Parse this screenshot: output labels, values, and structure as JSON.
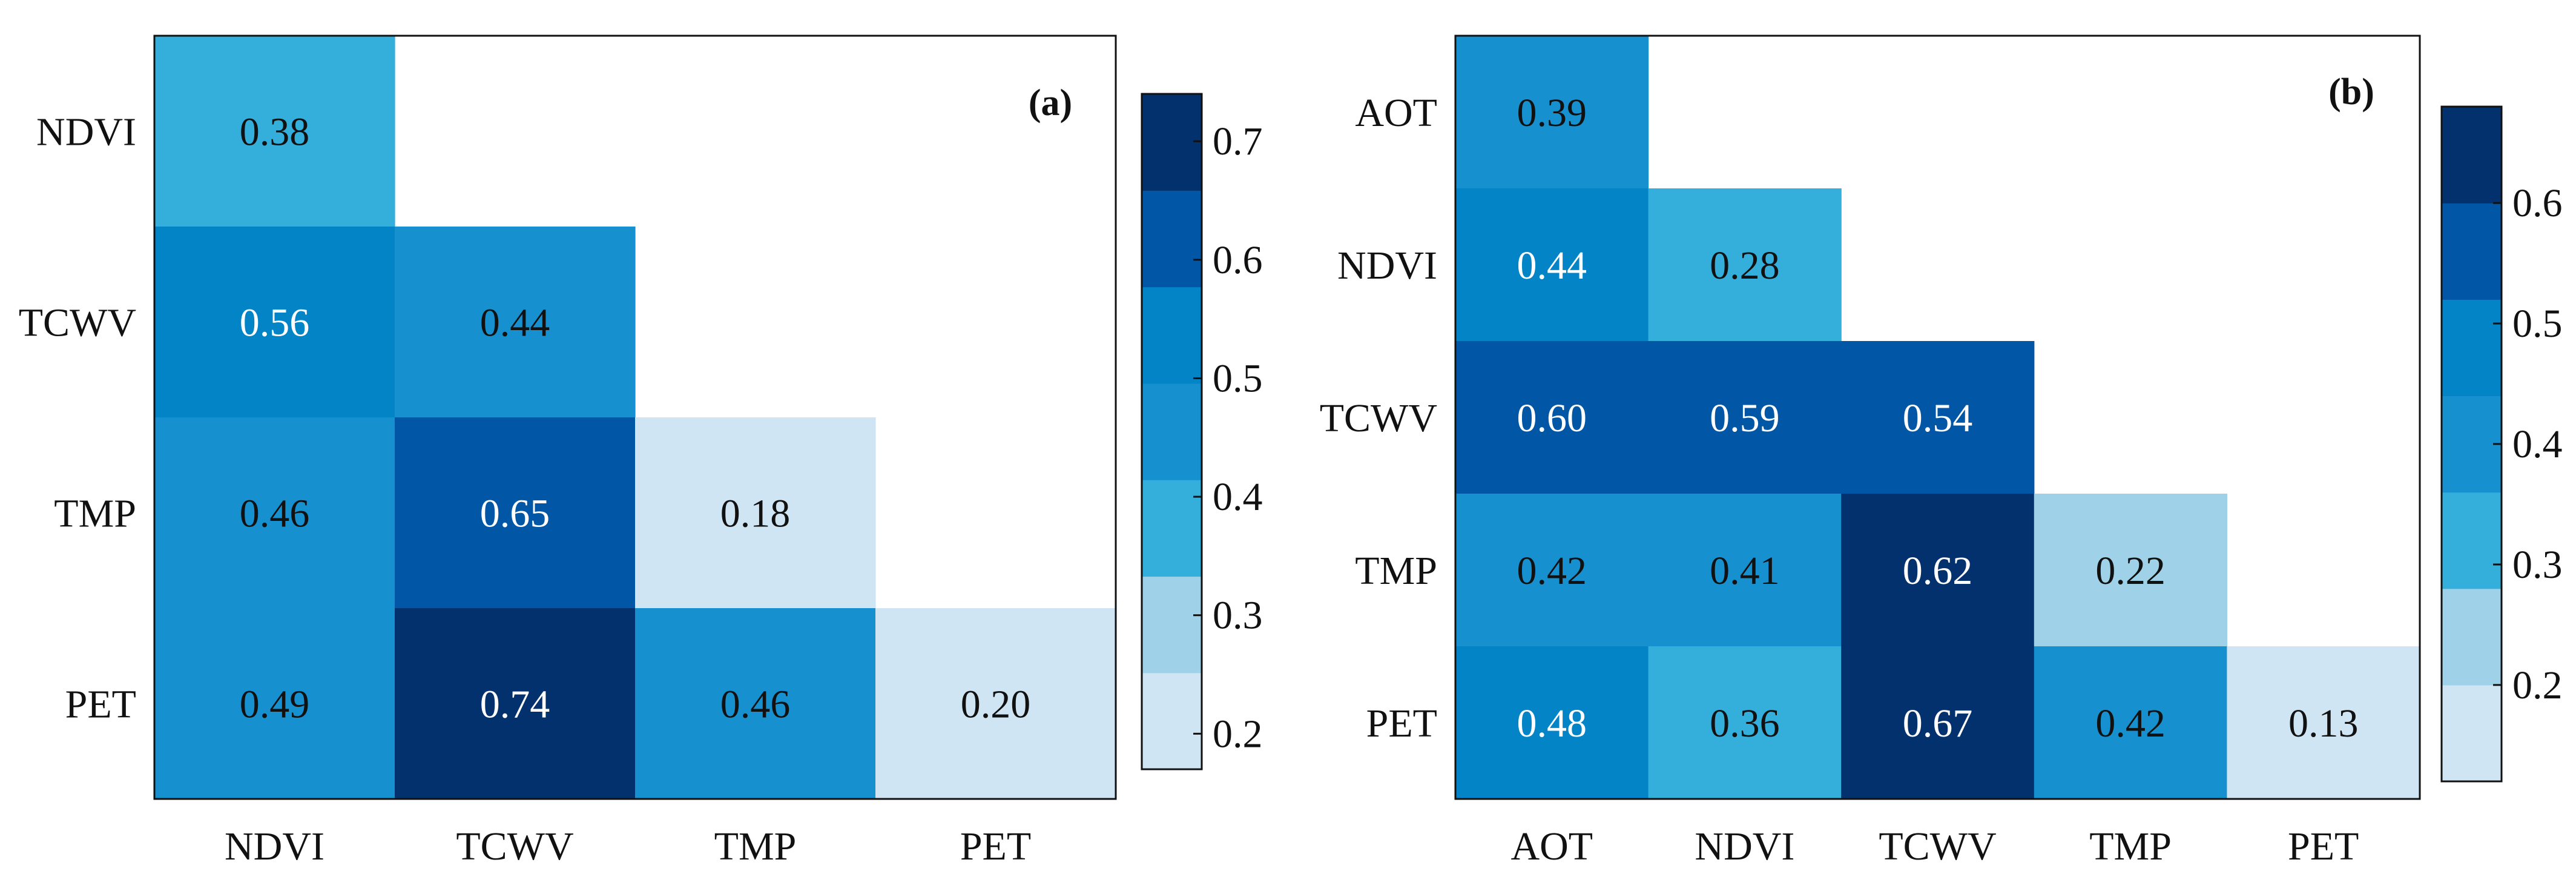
{
  "chart_data": [
    {
      "type": "heatmap",
      "panel_label": "(a)",
      "x_categories": [
        "NDVI",
        "TCWV",
        "TMP",
        "PET"
      ],
      "y_categories": [
        "NDVI",
        "TCWV",
        "TMP",
        "PET"
      ],
      "values": [
        [
          0.38,
          null,
          null,
          null
        ],
        [
          0.56,
          0.44,
          null,
          null
        ],
        [
          0.46,
          0.65,
          0.18,
          null
        ],
        [
          0.49,
          0.74,
          0.46,
          0.2
        ]
      ],
      "value_labels": [
        [
          "0.38",
          "",
          "",
          ""
        ],
        [
          "0.56",
          "0.44",
          "",
          ""
        ],
        [
          "0.46",
          "0.65",
          "0.18",
          ""
        ],
        [
          "0.49",
          "0.74",
          "0.46",
          "0.20"
        ]
      ],
      "colorbar": {
        "range": [
          0.17,
          0.74
        ],
        "ticks": [
          0.2,
          0.3,
          0.4,
          0.5,
          0.6,
          0.7
        ],
        "tick_labels": [
          "0.2",
          "0.3",
          "0.4",
          "0.5",
          "0.6",
          "0.7"
        ],
        "levels": 7
      }
    },
    {
      "type": "heatmap",
      "panel_label": "(b)",
      "x_categories": [
        "AOT",
        "NDVI",
        "TCWV",
        "TMP",
        "PET"
      ],
      "y_categories": [
        "AOT",
        "NDVI",
        "TCWV",
        "TMP",
        "PET"
      ],
      "values": [
        [
          0.39,
          null,
          null,
          null,
          null
        ],
        [
          0.44,
          0.28,
          null,
          null,
          null
        ],
        [
          0.6,
          0.59,
          0.54,
          null,
          null
        ],
        [
          0.42,
          0.41,
          0.62,
          0.22,
          null
        ],
        [
          0.48,
          0.36,
          0.67,
          0.42,
          0.13
        ]
      ],
      "value_labels": [
        [
          "0.39",
          "",
          "",
          "",
          ""
        ],
        [
          "0.44",
          "0.28",
          "",
          "",
          ""
        ],
        [
          "0.60",
          "0.59",
          "0.54",
          "",
          ""
        ],
        [
          "0.42",
          "0.41",
          "0.62",
          "0.22",
          ""
        ],
        [
          "0.48",
          "0.36",
          "0.67",
          "0.42",
          "0.13"
        ]
      ],
      "colorbar": {
        "range": [
          0.12,
          0.68
        ],
        "ticks": [
          0.2,
          0.3,
          0.4,
          0.5,
          0.6
        ],
        "tick_labels": [
          "0.2",
          "0.3",
          "0.4",
          "0.5",
          "0.6"
        ],
        "levels": 7
      }
    }
  ],
  "colors": {
    "palette": [
      "#cfe5f4",
      "#9fd1e8",
      "#34aedb",
      "#1790cf",
      "#0284c7",
      "#0256a6",
      "#02316d"
    ],
    "text_light": "#ffffff",
    "text_dark": "#111111",
    "frame": "#111111"
  }
}
